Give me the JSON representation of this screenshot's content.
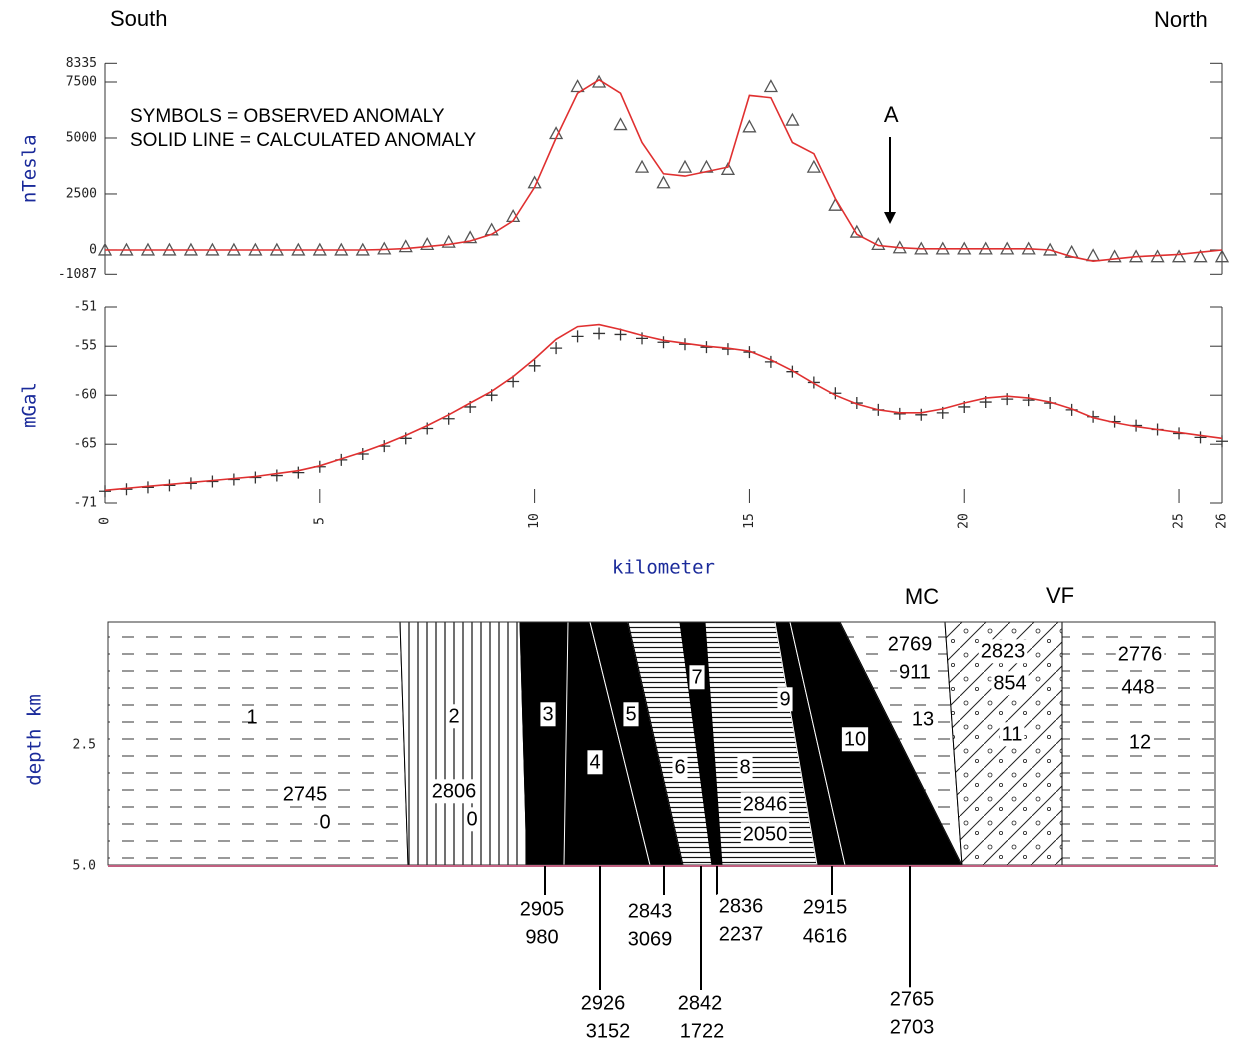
{
  "header": {
    "south": "South",
    "north": "North"
  },
  "chart_data": [
    {
      "type": "line",
      "y_label": "nTesla",
      "annotations": [
        "SYMBOLS = OBSERVED ANOMALY",
        "SOLID LINE = CALCULATED ANOMALY"
      ],
      "marker_label": {
        "text": "A",
        "x": 18.3
      },
      "x": [
        0,
        0.5,
        1,
        1.5,
        2,
        2.5,
        3,
        3.5,
        4,
        4.5,
        5,
        5.5,
        6,
        6.5,
        7,
        7.5,
        8,
        8.5,
        9,
        9.5,
        10,
        10.5,
        11,
        11.5,
        12,
        12.5,
        13,
        13.5,
        14,
        14.5,
        15,
        15.5,
        16,
        16.5,
        17,
        17.5,
        18,
        18.5,
        19,
        19.5,
        20,
        20.5,
        21,
        21.5,
        22,
        22.5,
        23,
        23.5,
        24,
        24.5,
        25,
        25.5,
        26
      ],
      "xlim": [
        0,
        26
      ],
      "ylim": [
        -1087,
        8335
      ],
      "yticks": [
        -1087,
        0,
        2500,
        5000,
        7500,
        8335
      ],
      "series": [
        {
          "color": "#555555",
          "marker": "triangle",
          "values": [
            0,
            0,
            0,
            0,
            0,
            0,
            0,
            0,
            0,
            0,
            0,
            0,
            0,
            50,
            150,
            250,
            350,
            550,
            900,
            1500,
            3000,
            5200,
            7300,
            7500,
            5600,
            3700,
            3000,
            3700,
            3700,
            3600,
            5500,
            7300,
            5800,
            3700,
            2000,
            800,
            250,
            100,
            50,
            50,
            50,
            50,
            50,
            50,
            0,
            -100,
            -250,
            -300,
            -300,
            -300,
            -300,
            -300,
            -300
          ]
        },
        {
          "color": "#e03030",
          "marker": "none",
          "values": [
            0,
            0,
            0,
            0,
            0,
            0,
            0,
            0,
            0,
            0,
            0,
            0,
            0,
            20,
            60,
            150,
            250,
            400,
            700,
            1300,
            2800,
            5000,
            7000,
            7600,
            7000,
            4800,
            3400,
            3300,
            3500,
            3700,
            6900,
            6800,
            4800,
            4300,
            2300,
            700,
            200,
            100,
            50,
            50,
            50,
            50,
            50,
            50,
            0,
            -300,
            -500,
            -400,
            -300,
            -250,
            -200,
            -100,
            0
          ]
        }
      ]
    },
    {
      "type": "line",
      "y_label": "mGal",
      "x_label": "kilometer",
      "x": [
        0,
        0.5,
        1,
        1.5,
        2,
        2.5,
        3,
        3.5,
        4,
        4.5,
        5,
        5.5,
        6,
        6.5,
        7,
        7.5,
        8,
        8.5,
        9,
        9.5,
        10,
        10.5,
        11,
        11.5,
        12,
        12.5,
        13,
        13.5,
        14,
        14.5,
        15,
        15.5,
        16,
        16.5,
        17,
        17.5,
        18,
        18.5,
        19,
        19.5,
        20,
        20.5,
        21,
        21.5,
        22,
        22.5,
        23,
        23.5,
        24,
        24.5,
        25,
        25.5,
        26
      ],
      "xlim": [
        0,
        26
      ],
      "xticks": [
        0,
        5,
        10,
        15,
        20,
        25,
        26
      ],
      "ylim": [
        -71,
        -51
      ],
      "yticks": [
        -71,
        -65,
        -60,
        -55,
        -51
      ],
      "series": [
        {
          "color": "#333333",
          "marker": "plus",
          "values": [
            -69.8,
            -69.6,
            -69.4,
            -69.2,
            -69.0,
            -68.8,
            -68.6,
            -68.4,
            -68.2,
            -67.9,
            -67.3,
            -66.6,
            -66.0,
            -65.2,
            -64.4,
            -63.4,
            -62.4,
            -61.2,
            -60.0,
            -58.6,
            -57.0,
            -55.2,
            -54.0,
            -53.7,
            -53.8,
            -54.2,
            -54.6,
            -54.8,
            -55.1,
            -55.3,
            -55.6,
            -56.6,
            -57.6,
            -58.7,
            -59.8,
            -60.8,
            -61.5,
            -61.9,
            -62.0,
            -61.8,
            -61.2,
            -60.7,
            -60.4,
            -60.5,
            -60.8,
            -61.5,
            -62.2,
            -62.7,
            -63.1,
            -63.5,
            -63.9,
            -64.3,
            -64.7
          ]
        },
        {
          "color": "#e03030",
          "marker": "none",
          "values": [
            -69.7,
            -69.5,
            -69.3,
            -69.1,
            -68.9,
            -68.7,
            -68.5,
            -68.3,
            -68.0,
            -67.7,
            -67.2,
            -66.5,
            -65.8,
            -65.0,
            -64.1,
            -63.1,
            -62.0,
            -60.8,
            -59.6,
            -58.1,
            -56.3,
            -54.3,
            -53.0,
            -52.8,
            -53.3,
            -53.9,
            -54.4,
            -54.7,
            -55.0,
            -55.2,
            -55.5,
            -56.4,
            -57.5,
            -58.8,
            -60.0,
            -60.9,
            -61.5,
            -61.8,
            -61.8,
            -61.4,
            -60.8,
            -60.3,
            -60.1,
            -60.3,
            -60.7,
            -61.4,
            -62.3,
            -62.8,
            -63.2,
            -63.5,
            -63.8,
            -64.1,
            -64.4
          ]
        }
      ]
    }
  ],
  "section": {
    "y_label": "depth km",
    "depth_ticks": [
      "2.5",
      "5.0"
    ],
    "mc": "MC",
    "vf": "VF",
    "bodies": [
      {
        "id": "1",
        "density": 2745,
        "susceptibility": 0
      },
      {
        "id": "2",
        "density": 2806,
        "susceptibility": 0
      },
      {
        "id": "3",
        "density": 2905,
        "susceptibility": 980
      },
      {
        "id": "4",
        "density": 2926,
        "susceptibility": 3152
      },
      {
        "id": "5",
        "density": 2843,
        "susceptibility": 3069
      },
      {
        "id": "6",
        "density": 2842,
        "susceptibility": 1722
      },
      {
        "id": "7",
        "density": 2836,
        "susceptibility": 2237
      },
      {
        "id": "8",
        "density": 2846,
        "susceptibility": 2050
      },
      {
        "id": "9",
        "density": 2915,
        "susceptibility": 4616
      },
      {
        "id": "10",
        "density": 2765,
        "susceptibility": 2703
      },
      {
        "id": "11",
        "density": 2823,
        "susceptibility": 854
      },
      {
        "id": "12",
        "density": 2776,
        "susceptibility": 448
      },
      {
        "id": "13",
        "density": 2769,
        "susceptibility": 911
      }
    ]
  }
}
